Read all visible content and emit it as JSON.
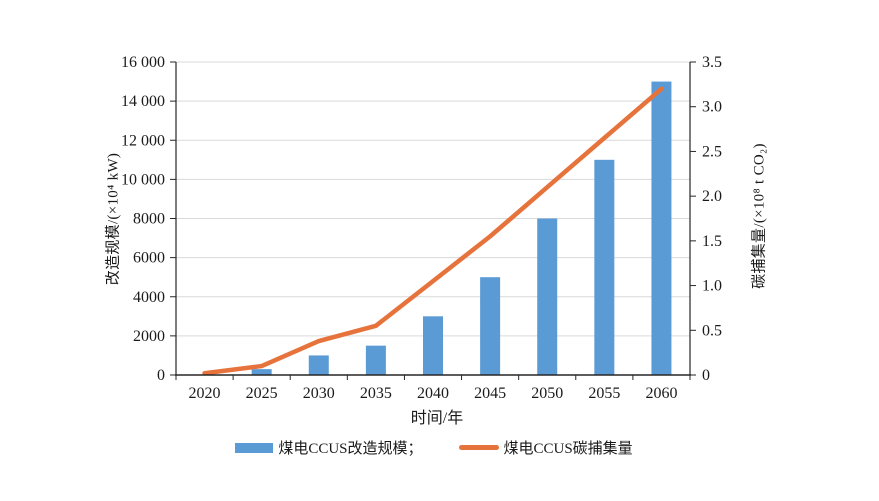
{
  "chart_data": {
    "type": "bar+line",
    "title": "",
    "xlabel": "时间/年",
    "categories": [
      "2020",
      "2025",
      "2030",
      "2035",
      "2040",
      "2045",
      "2050",
      "2055",
      "2060"
    ],
    "series": [
      {
        "name": "煤电CCUS改造规模",
        "type": "bar",
        "axis": "left",
        "values": [
          0,
          300,
          1000,
          1500,
          3000,
          5000,
          8000,
          11000,
          15000
        ]
      },
      {
        "name": "煤电CCUS碳捕集量",
        "type": "line",
        "axis": "right",
        "values": [
          0.02,
          0.1,
          0.38,
          0.55,
          1.05,
          1.55,
          2.1,
          2.65,
          3.2
        ]
      }
    ],
    "left_axis": {
      "title": "改造规模/(×10⁴ kW)",
      "min": 0,
      "max": 16000,
      "tick_values": [
        0,
        2000,
        4000,
        6000,
        8000,
        10000,
        12000,
        14000,
        16000
      ],
      "tick_labels": [
        "0",
        "2000",
        "4000",
        "6000",
        "8000",
        "10 000",
        "12 000",
        "14 000",
        "16 000"
      ]
    },
    "right_axis": {
      "title": "碳捕集量/(×10⁸ t CO₂)",
      "min": 0,
      "max": 3.5,
      "tick_values": [
        0,
        0.5,
        1.0,
        1.5,
        2.0,
        2.5,
        3.0,
        3.5
      ],
      "tick_labels": [
        "0",
        "0.5",
        "1.0",
        "1.5",
        "2.0",
        "2.5",
        "3.0",
        "3.5"
      ]
    },
    "legend": [
      {
        "label": "煤电CCUS改造规模；",
        "swatch": "bar"
      },
      {
        "label": "煤电CCUS碳捕集量",
        "swatch": "line"
      }
    ],
    "grid": true,
    "legend_position": "bottom",
    "colors": {
      "bar": "#5b9bd5",
      "line": "#e7733c",
      "grid": "#d9d9d9",
      "axis": "#262626",
      "text": "#1a1a1a"
    }
  }
}
